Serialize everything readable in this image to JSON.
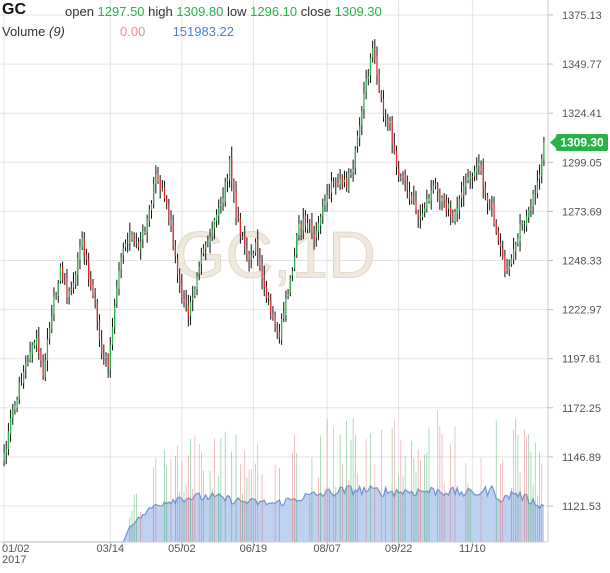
{
  "header": {
    "symbol": "GC",
    "open_label": "open",
    "open_value": "1297.50",
    "high_label": "high",
    "high_value": "1309.80",
    "low_label": "low",
    "low_value": "1296.10",
    "close_label": "close",
    "close_value": "1309.30",
    "volume_label": "Volume",
    "volume_period": "(9)",
    "volume_value_1": "0.00",
    "volume_value_2": "151983.22"
  },
  "watermark": "GC,1D",
  "last_price_label": "1309.30",
  "colors": {
    "up": "#2ab14a",
    "down": "#e0262b",
    "wick": "#111111",
    "volume_fill": "#b3c9ef",
    "volume_line": "#6f93d6",
    "last_price_badge": "#2ab14a",
    "grid": "#e4e4e4",
    "watermark": "#efe9dd"
  },
  "chart_data": {
    "type": "candlestick",
    "y_ticks": [
      "1375.13",
      "1349.77",
      "1324.41",
      "1299.05",
      "1273.69",
      "1248.33",
      "1222.97",
      "1197.61",
      "1172.25",
      "1146.89",
      "1121.53"
    ],
    "ylim": [
      1100,
      1380
    ],
    "x_ticks": [
      {
        "label": "01/02",
        "index": 0
      },
      {
        "label": "03/14",
        "index": 49
      },
      {
        "label": "05/02",
        "index": 82
      },
      {
        "label": "06/19",
        "index": 115
      },
      {
        "label": "08/07",
        "index": 149
      },
      {
        "label": "09/22",
        "index": 182
      },
      {
        "label": "11/10",
        "index": 216
      }
    ],
    "year_label": "2017",
    "anchors": [
      [
        0,
        1148
      ],
      [
        2,
        1160
      ],
      [
        5,
        1175
      ],
      [
        8,
        1188
      ],
      [
        12,
        1201
      ],
      [
        15,
        1207
      ],
      [
        18,
        1188
      ],
      [
        22,
        1222
      ],
      [
        26,
        1243
      ],
      [
        29,
        1232
      ],
      [
        32,
        1237
      ],
      [
        36,
        1260
      ],
      [
        39,
        1240
      ],
      [
        42,
        1225
      ],
      [
        45,
        1200
      ],
      [
        48,
        1196
      ],
      [
        51,
        1225
      ],
      [
        54,
        1250
      ],
      [
        58,
        1262
      ],
      [
        62,
        1256
      ],
      [
        66,
        1267
      ],
      [
        70,
        1292
      ],
      [
        73,
        1285
      ],
      [
        76,
        1270
      ],
      [
        79,
        1250
      ],
      [
        82,
        1228
      ],
      [
        85,
        1222
      ],
      [
        88,
        1232
      ],
      [
        92,
        1255
      ],
      [
        96,
        1265
      ],
      [
        100,
        1275
      ],
      [
        104,
        1298
      ],
      [
        107,
        1272
      ],
      [
        110,
        1260
      ],
      [
        113,
        1250
      ],
      [
        116,
        1256
      ],
      [
        119,
        1238
      ],
      [
        122,
        1228
      ],
      [
        125,
        1215
      ],
      [
        127,
        1210
      ],
      [
        130,
        1226
      ],
      [
        133,
        1245
      ],
      [
        136,
        1265
      ],
      [
        140,
        1270
      ],
      [
        143,
        1260
      ],
      [
        146,
        1270
      ],
      [
        149,
        1283
      ],
      [
        152,
        1290
      ],
      [
        155,
        1288
      ],
      [
        158,
        1287
      ],
      [
        161,
        1298
      ],
      [
        164,
        1318
      ],
      [
        167,
        1340
      ],
      [
        170,
        1357
      ],
      [
        172,
        1345
      ],
      [
        175,
        1325
      ],
      [
        178,
        1318
      ],
      [
        181,
        1297
      ],
      [
        184,
        1290
      ],
      [
        187,
        1282
      ],
      [
        190,
        1276
      ],
      [
        192,
        1270
      ],
      [
        195,
        1280
      ],
      [
        198,
        1290
      ],
      [
        201,
        1282
      ],
      [
        204,
        1276
      ],
      [
        207,
        1272
      ],
      [
        210,
        1278
      ],
      [
        213,
        1287
      ],
      [
        216,
        1292
      ],
      [
        219,
        1296
      ],
      [
        222,
        1283
      ],
      [
        225,
        1275
      ],
      [
        228,
        1258
      ],
      [
        231,
        1243
      ],
      [
        234,
        1250
      ],
      [
        237,
        1262
      ],
      [
        240,
        1270
      ],
      [
        243,
        1278
      ],
      [
        246,
        1287
      ],
      [
        249,
        1309
      ]
    ],
    "last_close": 1309.3,
    "volume_levels": [
      [
        0,
        0
      ],
      [
        55,
        0
      ],
      [
        58,
        3000
      ],
      [
        64,
        5000
      ],
      [
        70,
        7000
      ],
      [
        80,
        8200
      ],
      [
        95,
        8500
      ],
      [
        110,
        7600
      ],
      [
        125,
        7200
      ],
      [
        140,
        8600
      ],
      [
        160,
        9800
      ],
      [
        180,
        9400
      ],
      [
        200,
        9600
      ],
      [
        215,
        9100
      ],
      [
        225,
        9700
      ],
      [
        230,
        7800
      ],
      [
        235,
        9300
      ],
      [
        249,
        6600
      ]
    ],
    "volume_max": 30000
  }
}
